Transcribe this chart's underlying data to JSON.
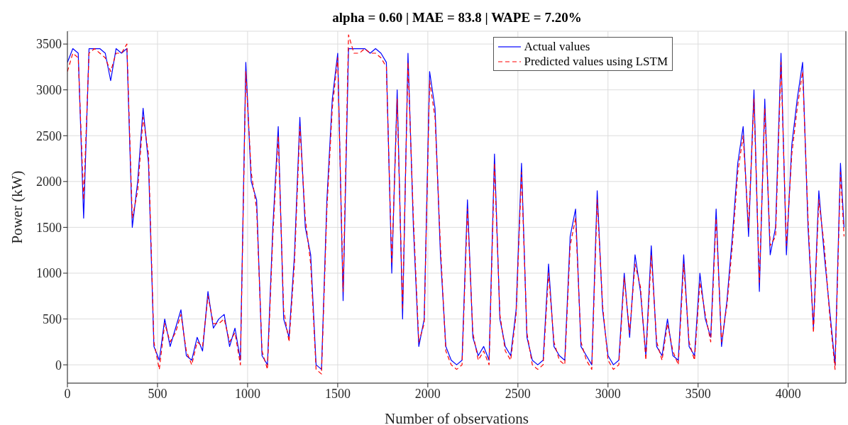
{
  "chart_data": {
    "type": "line",
    "title": "alpha = 0.60 | MAE = 83.8 | WAPE = 7.20%",
    "xlabel": "Number of observations",
    "ylabel": "Power (kW)",
    "x": [
      0,
      30,
      60,
      90,
      120,
      150,
      180,
      210,
      240,
      270,
      300,
      330,
      360,
      390,
      420,
      450,
      480,
      510,
      540,
      570,
      600,
      630,
      660,
      690,
      720,
      750,
      780,
      810,
      840,
      870,
      900,
      930,
      960,
      990,
      1020,
      1050,
      1080,
      1110,
      1140,
      1170,
      1200,
      1230,
      1260,
      1290,
      1320,
      1350,
      1380,
      1410,
      1440,
      1470,
      1500,
      1530,
      1560,
      1590,
      1620,
      1650,
      1680,
      1710,
      1740,
      1770,
      1800,
      1830,
      1860,
      1890,
      1920,
      1950,
      1980,
      2010,
      2040,
      2070,
      2100,
      2130,
      2160,
      2190,
      2220,
      2250,
      2280,
      2310,
      2340,
      2370,
      2400,
      2430,
      2460,
      2490,
      2520,
      2550,
      2580,
      2610,
      2640,
      2670,
      2700,
      2730,
      2760,
      2790,
      2820,
      2850,
      2880,
      2910,
      2940,
      2970,
      3000,
      3030,
      3060,
      3090,
      3120,
      3150,
      3180,
      3210,
      3240,
      3270,
      3300,
      3330,
      3360,
      3390,
      3420,
      3450,
      3480,
      3510,
      3540,
      3570,
      3600,
      3630,
      3660,
      3690,
      3720,
      3750,
      3780,
      3810,
      3840,
      3870,
      3900,
      3930,
      3960,
      3990,
      4020,
      4050,
      4080,
      4110,
      4140,
      4170,
      4200,
      4230,
      4260,
      4290,
      4310
    ],
    "series": [
      {
        "name": "Actual values",
        "color": "#0000ff",
        "line_style": "solid",
        "values": [
          3300,
          3450,
          3400,
          1600,
          3450,
          3450,
          3450,
          3400,
          3100,
          3450,
          3400,
          3450,
          1500,
          2000,
          2800,
          2200,
          200,
          50,
          500,
          200,
          400,
          600,
          100,
          50,
          300,
          150,
          800,
          400,
          500,
          550,
          200,
          400,
          50,
          3300,
          2000,
          1800,
          100,
          0,
          1500,
          2600,
          500,
          300,
          1200,
          2700,
          1500,
          1200,
          0,
          -50,
          1800,
          2900,
          3400,
          700,
          3450,
          3450,
          3450,
          3450,
          3400,
          3450,
          3400,
          3300,
          1000,
          3000,
          500,
          3400,
          1500,
          200,
          500,
          3200,
          2800,
          1200,
          200,
          50,
          0,
          50,
          1800,
          300,
          100,
          200,
          50,
          2300,
          500,
          200,
          100,
          600,
          2200,
          300,
          50,
          0,
          50,
          1100,
          200,
          100,
          50,
          1400,
          1700,
          200,
          100,
          0,
          1900,
          600,
          100,
          0,
          50,
          1000,
          300,
          1200,
          800,
          100,
          1300,
          200,
          100,
          500,
          100,
          50,
          1200,
          200,
          100,
          1000,
          500,
          300,
          1700,
          200,
          700,
          1400,
          2200,
          2600,
          1400,
          3000,
          800,
          2900,
          1200,
          1500,
          3400,
          1200,
          2400,
          2900,
          3300,
          1500,
          400,
          1900,
          1200,
          600,
          0,
          2200,
          1500
        ]
      },
      {
        "name": "Predicted values using LSTM",
        "color": "#ff0000",
        "line_style": "dashed",
        "values": [
          3200,
          3400,
          3350,
          1800,
          3400,
          3450,
          3400,
          3350,
          3200,
          3400,
          3400,
          3500,
          1600,
          1900,
          2700,
          2300,
          250,
          -50,
          450,
          250,
          350,
          550,
          150,
          0,
          250,
          200,
          750,
          450,
          450,
          500,
          250,
          350,
          0,
          3200,
          2100,
          1700,
          150,
          -50,
          1400,
          2500,
          600,
          250,
          1100,
          2600,
          1600,
          1100,
          -50,
          -100,
          1700,
          2800,
          3350,
          800,
          3600,
          3400,
          3400,
          3450,
          3400,
          3400,
          3350,
          3250,
          1100,
          2900,
          600,
          3300,
          1600,
          250,
          450,
          3100,
          2700,
          1300,
          150,
          0,
          -50,
          0,
          1700,
          350,
          50,
          150,
          0,
          2200,
          550,
          150,
          50,
          550,
          2100,
          350,
          0,
          -50,
          0,
          1000,
          250,
          50,
          0,
          1300,
          1600,
          250,
          50,
          -50,
          1800,
          650,
          50,
          -50,
          0,
          950,
          350,
          1100,
          850,
          50,
          1200,
          250,
          50,
          450,
          150,
          0,
          1100,
          250,
          50,
          900,
          550,
          250,
          1600,
          250,
          650,
          1300,
          2100,
          2500,
          1500,
          2900,
          900,
          2800,
          1300,
          1400,
          3300,
          1300,
          2300,
          2800,
          3200,
          1600,
          350,
          1800,
          1300,
          550,
          -50,
          2100,
          1400
        ]
      }
    ],
    "xlim": [
      0,
      4320
    ],
    "xticks": [
      0,
      500,
      1000,
      1500,
      2000,
      2500,
      3000,
      3500,
      4000
    ],
    "ylim": [
      -200,
      3640
    ],
    "yticks": [
      0,
      500,
      1000,
      1500,
      2000,
      2500,
      3000,
      3500
    ],
    "grid": true,
    "legend": "top right",
    "marker": "none"
  }
}
